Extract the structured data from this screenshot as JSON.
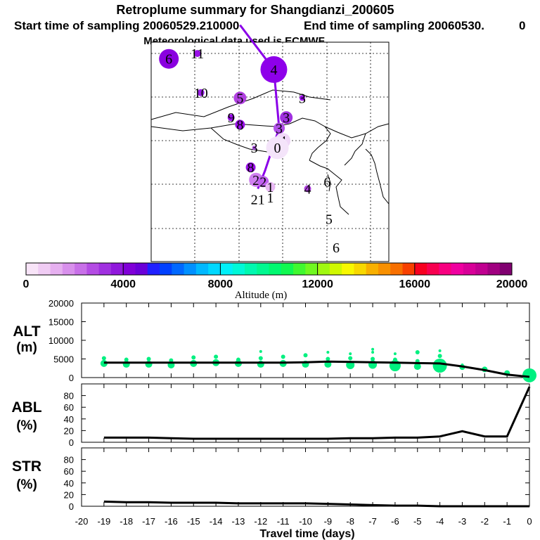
{
  "header": {
    "title": "Retroplume summary for Shangdianzi_200605",
    "start": "Start time of sampling 20060529.210000",
    "end": "End time of sampling 20060530.",
    "end_suffix": "0",
    "met": "Meteorological data used is ECMWF"
  },
  "map": {
    "markers": [
      {
        "label": "6",
        "day": 6,
        "lon_i": 0.6,
        "lat_i": 0.7,
        "size": 14,
        "color": "#8a00e0"
      },
      {
        "label": "11",
        "day": 11,
        "lon_i": 2.2,
        "lat_i": 0.4,
        "size": 5,
        "color": "#9a10e8"
      },
      {
        "label": "4",
        "day": 4,
        "lon_i": 6.5,
        "lat_i": 1.3,
        "size": 19,
        "color": "#8e00ea"
      },
      {
        "label": "10",
        "day": 10,
        "lon_i": 2.4,
        "lat_i": 2.6,
        "size": 5,
        "color": "#9a20e8"
      },
      {
        "label": "5",
        "day": 5,
        "lon_i": 4.6,
        "lat_i": 2.9,
        "size": 9,
        "color": "#b040e0"
      },
      {
        "label": "3",
        "day": 3,
        "lon_i": 8.1,
        "lat_i": 2.9,
        "size": 4,
        "color": "#9a10e8"
      },
      {
        "label": "9",
        "day": 9,
        "lon_i": 4.1,
        "lat_i": 4.0,
        "size": 5,
        "color": "#9a10e8"
      },
      {
        "label": "8",
        "day": 8,
        "lon_i": 4.6,
        "lat_i": 4.4,
        "size": 7,
        "color": "#9a10e8"
      },
      {
        "label": "3",
        "day": 3,
        "lon_i": 7.2,
        "lat_i": 4.0,
        "size": 9,
        "color": "#a030e0"
      },
      {
        "label": "3",
        "day": 3,
        "lon_i": 6.8,
        "lat_i": 4.6,
        "size": 8,
        "color": "#b050e8"
      },
      {
        "label": "4",
        "day": 4,
        "lon_i": 7.0,
        "lat_i": 5.3,
        "size": 11,
        "color": "#f0d8f8"
      },
      {
        "label": "3",
        "day": 3,
        "lon_i": 5.4,
        "lat_i": 5.7,
        "size": 3,
        "color": "#b050e8"
      },
      {
        "label": "0",
        "day": 0,
        "lon_i": 6.7,
        "lat_i": 5.7,
        "size": 16,
        "color": "#f4e4fa"
      },
      {
        "label": "8",
        "day": 8,
        "lon_i": 5.2,
        "lat_i": 6.8,
        "size": 7,
        "color": "#9a10e8"
      },
      {
        "label": "2",
        "day": 2,
        "lon_i": 5.5,
        "lat_i": 7.5,
        "size": 10,
        "color": "#d080f0"
      },
      {
        "label": "2",
        "day": 2,
        "lon_i": 5.9,
        "lat_i": 7.6,
        "size": 8,
        "color": "#c060f0"
      },
      {
        "label": "1",
        "day": 1,
        "lon_i": 6.3,
        "lat_i": 7.9,
        "size": 7,
        "color": "#e8b8f4"
      },
      {
        "label": "4",
        "day": 4,
        "lon_i": 8.4,
        "lat_i": 8.0,
        "size": 5,
        "color": "#b040e0"
      },
      {
        "label": "6",
        "day": 6,
        "lon_i": 9.5,
        "lat_i": 7.6,
        "size": 0,
        "color": "#b050e8"
      },
      {
        "label": "21",
        "day": 21,
        "lon_i": 5.6,
        "lat_i": 8.6,
        "size": 0,
        "color": "#9a10e8"
      },
      {
        "label": "1",
        "day": 1,
        "lon_i": 6.3,
        "lat_i": 8.5,
        "size": 0,
        "color": "#9a10e8"
      },
      {
        "label": "5",
        "day": 5,
        "lon_i": 9.6,
        "lat_i": 9.7,
        "size": 0,
        "color": "#b050e8"
      },
      {
        "label": "6",
        "day": 6,
        "lon_i": 10.0,
        "lat_i": 11.3,
        "size": 0,
        "color": "#b050e8"
      }
    ],
    "path": [
      [
        6.5,
        1.3
      ],
      [
        6.8,
        4.6
      ],
      [
        6.0,
        7.0
      ],
      [
        5.6,
        8.0
      ]
    ],
    "path_top": [
      [
        4.6,
        -1.2
      ],
      [
        6.5,
        1.3
      ]
    ]
  },
  "colorbar": {
    "label": "Altitude (m)",
    "min": 0,
    "max": 20000,
    "tick_labels": [
      "0",
      "4000",
      "8000",
      "12000",
      "16000",
      "20000"
    ],
    "tick_values": [
      0,
      4000,
      8000,
      12000,
      16000,
      20000
    ],
    "colors": [
      "#f8e4f8",
      "#f0ccf4",
      "#e6b0f0",
      "#d890ec",
      "#c870e8",
      "#b44ce4",
      "#a030e0",
      "#9018dc",
      "#8000d8",
      "#6a00d8",
      "#2020ff",
      "#0040ff",
      "#0068ff",
      "#0090ff",
      "#00b8ff",
      "#00d8ff",
      "#00f0f8",
      "#00f8d8",
      "#00f8b0",
      "#00f890",
      "#00f870",
      "#10f850",
      "#40f830",
      "#70f820",
      "#a0f810",
      "#d0f800",
      "#f8f800",
      "#f8d800",
      "#f8b000",
      "#f89000",
      "#f87000",
      "#f84000",
      "#f80020",
      "#f80050",
      "#f80080",
      "#f000a0",
      "#d80098",
      "#c00090",
      "#a00080",
      "#800070"
    ]
  },
  "chart_data": [
    {
      "type": "scatter",
      "name": "ALT",
      "ylabel": "ALT",
      "yunit": "(m)",
      "ylim": [
        0,
        20000
      ],
      "yticks": [
        "20000",
        "15000",
        "10000",
        "5000",
        "0"
      ],
      "ytick_values": [
        20000,
        15000,
        10000,
        5000,
        0
      ],
      "xlim": [
        -20,
        0
      ],
      "line": {
        "x": [
          -19,
          -18,
          -17,
          -16,
          -15,
          -14,
          -13,
          -12,
          -11,
          -10,
          -9,
          -8,
          -7,
          -6,
          -5,
          -4,
          -3,
          -2,
          -1,
          0
        ],
        "y": [
          4000,
          4000,
          4000,
          4000,
          4000,
          4000,
          4000,
          4000,
          4000,
          4100,
          4300,
          4200,
          4100,
          4000,
          3900,
          3800,
          3000,
          2000,
          800,
          200
        ]
      },
      "points": [
        {
          "x": -19,
          "y": 3800,
          "s": 5
        },
        {
          "x": -19,
          "y": 5200,
          "s": 3
        },
        {
          "x": -18,
          "y": 3600,
          "s": 5
        },
        {
          "x": -18,
          "y": 4800,
          "s": 3
        },
        {
          "x": -17,
          "y": 3600,
          "s": 5
        },
        {
          "x": -17,
          "y": 5000,
          "s": 3
        },
        {
          "x": -16,
          "y": 3400,
          "s": 5
        },
        {
          "x": -16,
          "y": 4600,
          "s": 3
        },
        {
          "x": -15,
          "y": 3800,
          "s": 5
        },
        {
          "x": -15,
          "y": 5400,
          "s": 3
        },
        {
          "x": -14,
          "y": 4000,
          "s": 5
        },
        {
          "x": -14,
          "y": 5600,
          "s": 3
        },
        {
          "x": -13,
          "y": 3800,
          "s": 5
        },
        {
          "x": -13,
          "y": 4800,
          "s": 3
        },
        {
          "x": -12,
          "y": 3600,
          "s": 5
        },
        {
          "x": -12,
          "y": 5200,
          "s": 3
        },
        {
          "x": -12,
          "y": 7000,
          "s": 2
        },
        {
          "x": -11,
          "y": 3800,
          "s": 5
        },
        {
          "x": -11,
          "y": 5600,
          "s": 3
        },
        {
          "x": -10,
          "y": 3600,
          "s": 5
        },
        {
          "x": -10,
          "y": 6000,
          "s": 3
        },
        {
          "x": -9,
          "y": 3600,
          "s": 5
        },
        {
          "x": -9,
          "y": 5000,
          "s": 3
        },
        {
          "x": -9,
          "y": 6800,
          "s": 2
        },
        {
          "x": -8,
          "y": 3400,
          "s": 6
        },
        {
          "x": -8,
          "y": 5200,
          "s": 3
        },
        {
          "x": -8,
          "y": 6400,
          "s": 2
        },
        {
          "x": -7,
          "y": 3500,
          "s": 6
        },
        {
          "x": -7,
          "y": 5000,
          "s": 3
        },
        {
          "x": -7,
          "y": 6800,
          "s": 2
        },
        {
          "x": -7,
          "y": 7600,
          "s": 2
        },
        {
          "x": -6,
          "y": 3200,
          "s": 8
        },
        {
          "x": -6,
          "y": 4800,
          "s": 3
        },
        {
          "x": -6,
          "y": 6400,
          "s": 2
        },
        {
          "x": -5,
          "y": 3000,
          "s": 5
        },
        {
          "x": -5,
          "y": 4400,
          "s": 3
        },
        {
          "x": -5,
          "y": 6800,
          "s": 3
        },
        {
          "x": -4,
          "y": 3200,
          "s": 10
        },
        {
          "x": -4,
          "y": 5800,
          "s": 3
        },
        {
          "x": -4,
          "y": 7200,
          "s": 2
        },
        {
          "x": -3,
          "y": 2800,
          "s": 4
        },
        {
          "x": -3,
          "y": 3400,
          "s": 2
        },
        {
          "x": -2,
          "y": 2200,
          "s": 4
        },
        {
          "x": -1,
          "y": 1200,
          "s": 4
        },
        {
          "x": 0,
          "y": 600,
          "s": 10
        }
      ],
      "color": "#00f080"
    },
    {
      "type": "line",
      "name": "ABL",
      "ylabel": "ABL",
      "yunit": "(%)",
      "ylim": [
        0,
        100
      ],
      "yticks": [
        "80",
        "60",
        "40",
        "20",
        "0"
      ],
      "ytick_values": [
        80,
        60,
        40,
        20,
        0
      ],
      "xlim": [
        -20,
        0
      ],
      "x": [
        -19,
        -18,
        -17,
        -16,
        -15,
        -14,
        -13,
        -12,
        -11,
        -10,
        -9,
        -8,
        -7,
        -6,
        -5,
        -4,
        -3,
        -2,
        -1,
        0
      ],
      "y": [
        8,
        8,
        8,
        7,
        6,
        6,
        6,
        6,
        6,
        6,
        6,
        7,
        7,
        8,
        8,
        10,
        19,
        10,
        10,
        95
      ]
    },
    {
      "type": "line",
      "name": "STR",
      "ylabel": "STR",
      "yunit": "(%)",
      "ylim": [
        0,
        100
      ],
      "yticks": [
        "80",
        "60",
        "40",
        "20",
        "0"
      ],
      "ytick_values": [
        80,
        60,
        40,
        20,
        0
      ],
      "xlim": [
        -20,
        0
      ],
      "x": [
        -19,
        -18,
        -17,
        -16,
        -15,
        -14,
        -13,
        -12,
        -11,
        -10,
        -9,
        -8,
        -7,
        -6,
        -5,
        -4,
        -3,
        -2,
        -1,
        0
      ],
      "y": [
        8,
        7,
        7,
        6,
        6,
        6,
        5,
        5,
        5,
        5,
        4,
        3,
        2,
        1,
        1,
        0,
        0,
        0,
        0,
        0
      ]
    }
  ],
  "xaxis": {
    "label": "Travel time (days)",
    "ticks": [
      "-20",
      "-19",
      "-18",
      "-17",
      "-16",
      "-15",
      "-14",
      "-13",
      "-12",
      "-11",
      "-10",
      "-9",
      "-8",
      "-7",
      "-6",
      "-5",
      "-4",
      "-3",
      "-2",
      "-1",
      "0"
    ],
    "tick_values": [
      -20,
      -19,
      -18,
      -17,
      -16,
      -15,
      -14,
      -13,
      -12,
      -11,
      -10,
      -9,
      -8,
      -7,
      -6,
      -5,
      -4,
      -3,
      -2,
      -1,
      0
    ]
  }
}
